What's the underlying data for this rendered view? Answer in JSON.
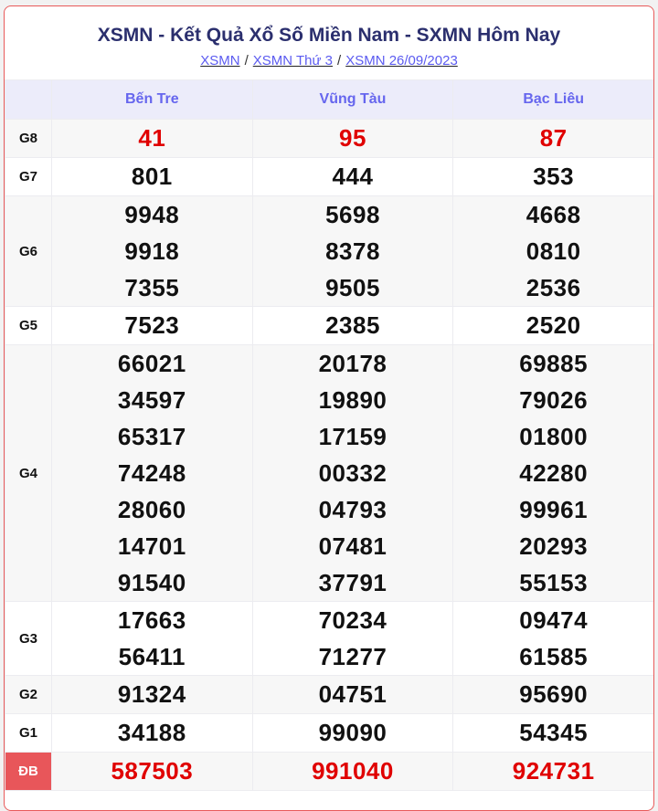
{
  "header": {
    "title": "XSMN - Kết Quả Xổ Số Miền Nam - SXMN Hôm Nay",
    "breadcrumbs": [
      "XSMN",
      "XSMN Thứ 3",
      "XSMN 26/09/2023"
    ],
    "separator": "/"
  },
  "provinces": [
    "Bến Tre",
    "Vũng Tàu",
    "Bạc Liêu"
  ],
  "prizes": [
    {
      "label": "G8",
      "highlight": true,
      "results": [
        [
          "41"
        ],
        [
          "95"
        ],
        [
          "87"
        ]
      ]
    },
    {
      "label": "G7",
      "results": [
        [
          "801"
        ],
        [
          "444"
        ],
        [
          "353"
        ]
      ]
    },
    {
      "label": "G6",
      "results": [
        [
          "9948",
          "9918",
          "7355"
        ],
        [
          "5698",
          "8378",
          "9505"
        ],
        [
          "4668",
          "0810",
          "2536"
        ]
      ]
    },
    {
      "label": "G5",
      "results": [
        [
          "7523"
        ],
        [
          "2385"
        ],
        [
          "2520"
        ]
      ]
    },
    {
      "label": "G4",
      "results": [
        [
          "66021",
          "34597",
          "65317",
          "74248",
          "28060",
          "14701",
          "91540"
        ],
        [
          "20178",
          "19890",
          "17159",
          "00332",
          "04793",
          "07481",
          "37791"
        ],
        [
          "69885",
          "79026",
          "01800",
          "42280",
          "99961",
          "20293",
          "55153"
        ]
      ]
    },
    {
      "label": "G3",
      "results": [
        [
          "17663",
          "56411"
        ],
        [
          "70234",
          "71277"
        ],
        [
          "09474",
          "61585"
        ]
      ]
    },
    {
      "label": "G2",
      "results": [
        [
          "91324"
        ],
        [
          "04751"
        ],
        [
          "95690"
        ]
      ]
    },
    {
      "label": "G1",
      "results": [
        [
          "34188"
        ],
        [
          "99090"
        ],
        [
          "54345"
        ]
      ]
    },
    {
      "label": "ĐB",
      "highlight": true,
      "special": true,
      "results": [
        [
          "587503"
        ],
        [
          "991040"
        ],
        [
          "924731"
        ]
      ]
    }
  ],
  "colors": {
    "highlight": "#e00000",
    "title": "#2b2f6e",
    "header_text": "#6666ee",
    "special_label_bg": "#e8565a",
    "border": "#e85a5a"
  }
}
